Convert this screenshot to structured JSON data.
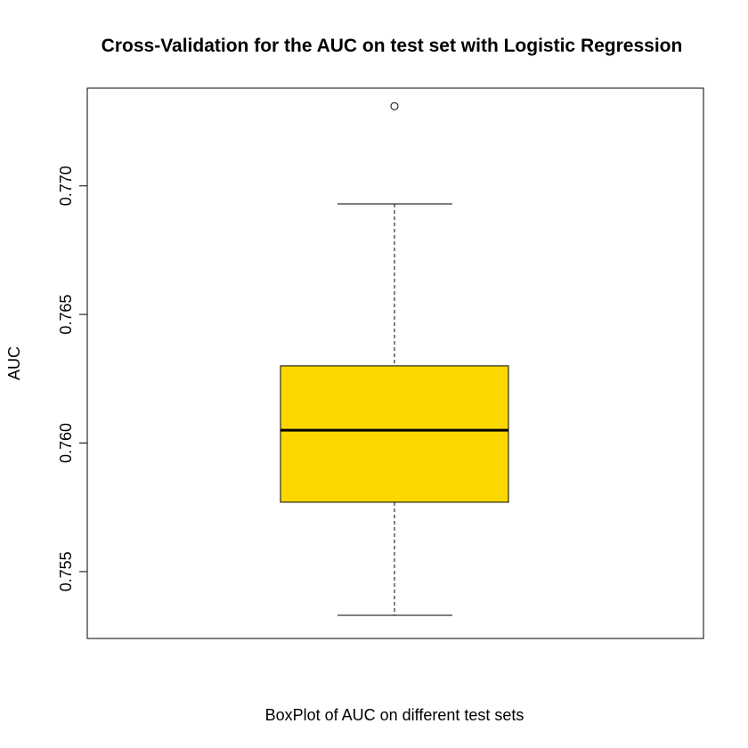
{
  "chart_data": {
    "type": "boxplot",
    "title": "Cross-Validation for the AUC on test set with Logistic Regression",
    "xlabel": "BoxPlot of AUC on different test sets",
    "ylabel": "AUC",
    "ylim": [
      0.7524,
      0.7738
    ],
    "yticks": [
      0.755,
      0.76,
      0.765,
      0.77
    ],
    "ytick_labels": [
      "0.755",
      "0.760",
      "0.765",
      "0.770"
    ],
    "box": {
      "whisker_low": 0.7533,
      "q1": 0.7577,
      "median": 0.7605,
      "q3": 0.763,
      "whisker_high": 0.7693,
      "outliers": [
        0.7731
      ]
    },
    "box_color": "#FFD700",
    "grid": false,
    "legend": "none"
  }
}
